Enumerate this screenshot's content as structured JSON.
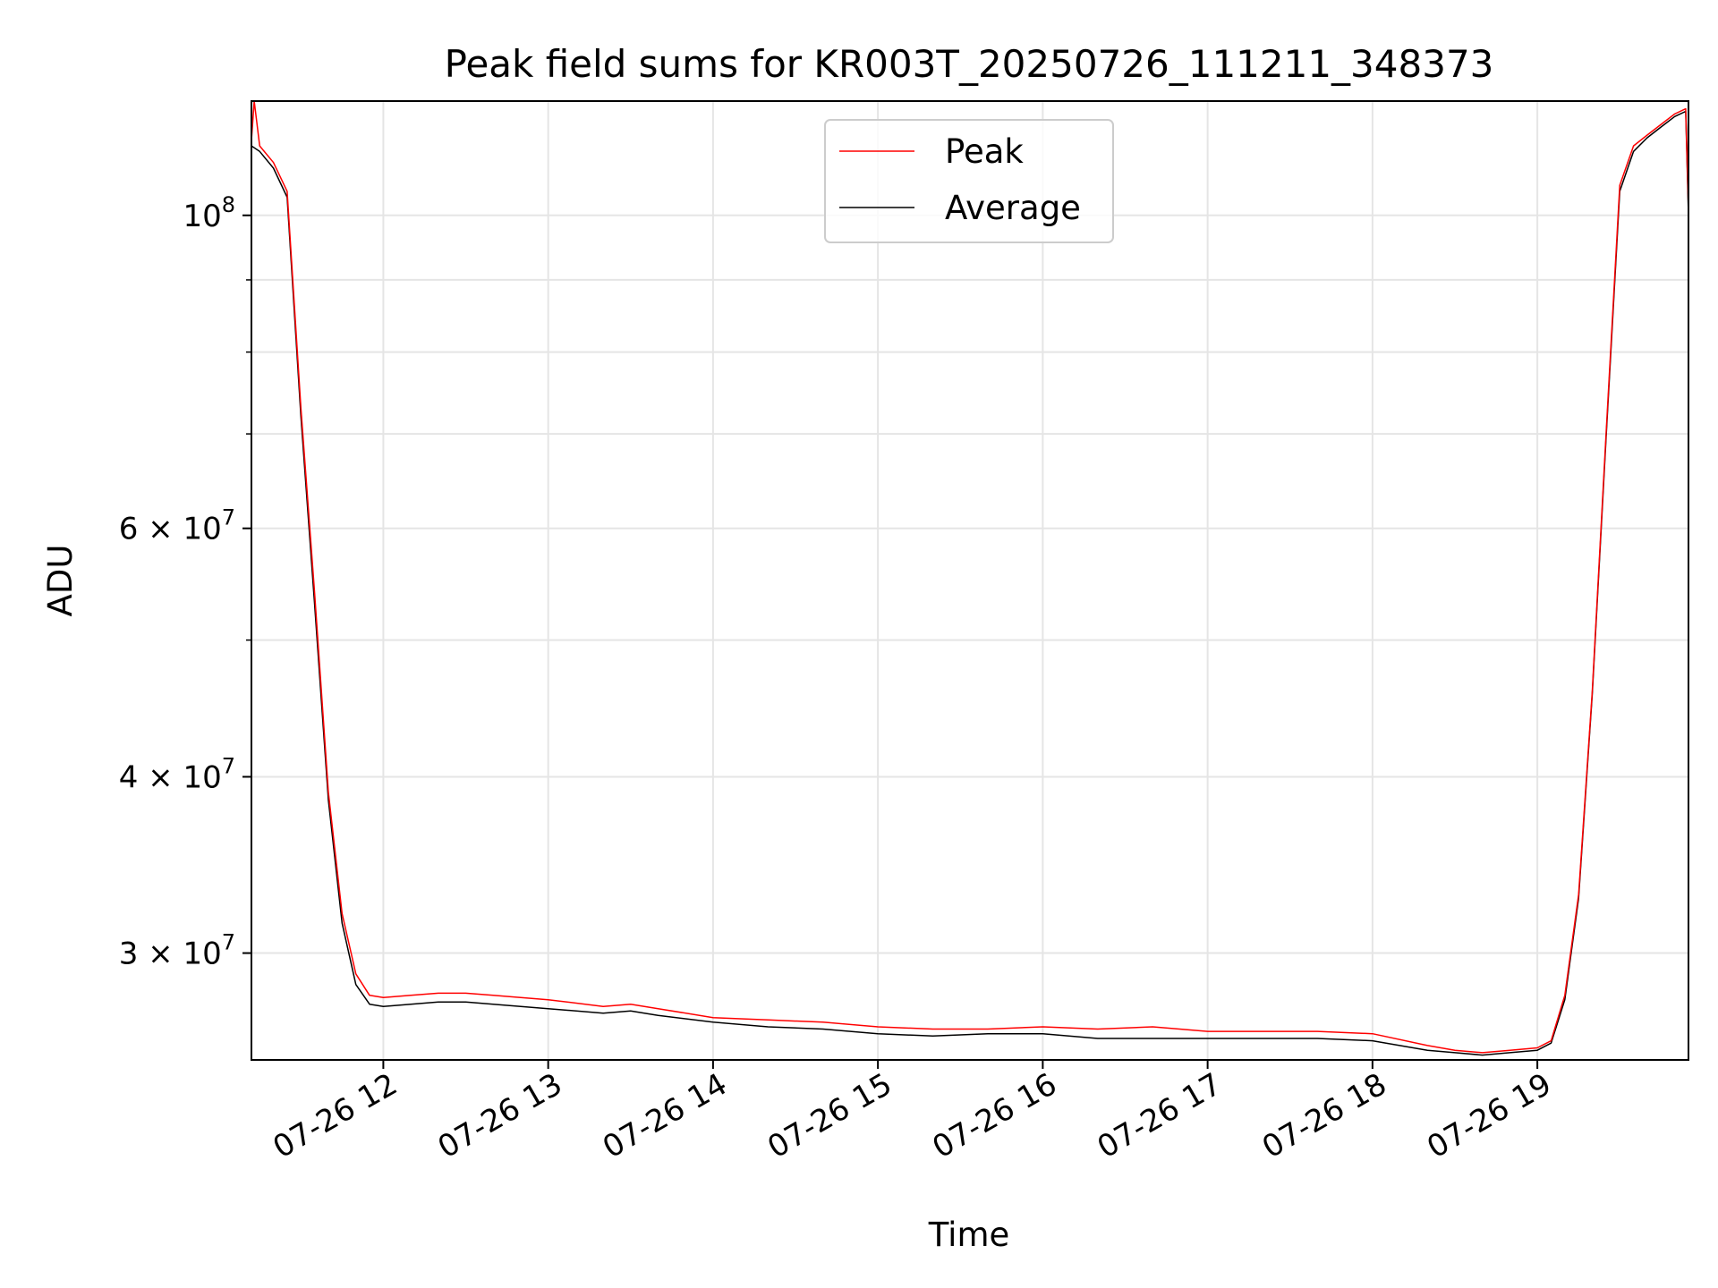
{
  "chart_data": {
    "type": "line",
    "title": "Peak field sums for KR003T_20250726_111211_348373",
    "xlabel": "Time",
    "ylabel": "ADU",
    "y_scale": "log",
    "ylim": [
      25200000,
      120500000
    ],
    "xlim": [
      "2025-07-26 11:12",
      "2025-07-26 19:55"
    ],
    "grid": true,
    "legend_position": "top-center",
    "x_ticks": [
      {
        "t": "2025-07-26 12:00",
        "label": "07-26 12"
      },
      {
        "t": "2025-07-26 13:00",
        "label": "07-26 13"
      },
      {
        "t": "2025-07-26 14:00",
        "label": "07-26 14"
      },
      {
        "t": "2025-07-26 15:00",
        "label": "07-26 15"
      },
      {
        "t": "2025-07-26 16:00",
        "label": "07-26 16"
      },
      {
        "t": "2025-07-26 17:00",
        "label": "07-26 17"
      },
      {
        "t": "2025-07-26 18:00",
        "label": "07-26 18"
      },
      {
        "t": "2025-07-26 19:00",
        "label": "07-26 19"
      }
    ],
    "y_ticks": [
      {
        "v": 30000000,
        "label": "3×10⁷",
        "base": "3 × 10",
        "exp": "7"
      },
      {
        "v": 40000000,
        "label": "4×10⁷",
        "base": "4 × 10",
        "exp": "7"
      },
      {
        "v": 60000000,
        "label": "6×10⁷",
        "base": "6 × 10",
        "exp": "7"
      },
      {
        "v": 100000000,
        "label": "10⁸",
        "base": "10",
        "exp": "8"
      }
    ],
    "y_minor_ticks": [
      50000000,
      70000000,
      80000000,
      90000000
    ],
    "series": [
      {
        "name": "Peak",
        "color": "#ff0000",
        "x": [
          "2025-07-26 11:12",
          "2025-07-26 11:13",
          "2025-07-26 11:15",
          "2025-07-26 11:20",
          "2025-07-26 11:25",
          "2025-07-26 11:30",
          "2025-07-26 11:35",
          "2025-07-26 11:40",
          "2025-07-26 11:45",
          "2025-07-26 11:50",
          "2025-07-26 11:55",
          "2025-07-26 12:00",
          "2025-07-26 12:10",
          "2025-07-26 12:20",
          "2025-07-26 12:30",
          "2025-07-26 12:40",
          "2025-07-26 13:00",
          "2025-07-26 13:20",
          "2025-07-26 13:30",
          "2025-07-26 13:40",
          "2025-07-26 14:00",
          "2025-07-26 14:20",
          "2025-07-26 14:40",
          "2025-07-26 15:00",
          "2025-07-26 15:20",
          "2025-07-26 15:40",
          "2025-07-26 16:00",
          "2025-07-26 16:20",
          "2025-07-26 16:40",
          "2025-07-26 17:00",
          "2025-07-26 17:20",
          "2025-07-26 17:40",
          "2025-07-26 18:00",
          "2025-07-26 18:20",
          "2025-07-26 18:30",
          "2025-07-26 18:40",
          "2025-07-26 18:50",
          "2025-07-26 19:00",
          "2025-07-26 19:05",
          "2025-07-26 19:10",
          "2025-07-26 19:15",
          "2025-07-26 19:20",
          "2025-07-26 19:25",
          "2025-07-26 19:30",
          "2025-07-26 19:35",
          "2025-07-26 19:40",
          "2025-07-26 19:45",
          "2025-07-26 19:50",
          "2025-07-26 19:54",
          "2025-07-26 19:55"
        ],
        "y": [
          113000000,
          120500000,
          112000000,
          109000000,
          104000000,
          73000000,
          54000000,
          39000000,
          32000000,
          29000000,
          28000000,
          27900000,
          28000000,
          28100000,
          28100000,
          28000000,
          27800000,
          27500000,
          27600000,
          27400000,
          27000000,
          26900000,
          26800000,
          26600000,
          26500000,
          26500000,
          26600000,
          26500000,
          26600000,
          26400000,
          26400000,
          26400000,
          26300000,
          25800000,
          25600000,
          25500000,
          25600000,
          25700000,
          26000000,
          28000000,
          33000000,
          46000000,
          70000000,
          105000000,
          112000000,
          114000000,
          116000000,
          118000000,
          119000000,
          101000000
        ]
      },
      {
        "name": "Average",
        "color": "#000000",
        "x": [
          "2025-07-26 11:12",
          "2025-07-26 11:15",
          "2025-07-26 11:20",
          "2025-07-26 11:25",
          "2025-07-26 11:30",
          "2025-07-26 11:35",
          "2025-07-26 11:40",
          "2025-07-26 11:45",
          "2025-07-26 11:50",
          "2025-07-26 11:55",
          "2025-07-26 12:00",
          "2025-07-26 12:10",
          "2025-07-26 12:20",
          "2025-07-26 12:30",
          "2025-07-26 12:40",
          "2025-07-26 13:00",
          "2025-07-26 13:20",
          "2025-07-26 13:30",
          "2025-07-26 13:40",
          "2025-07-26 14:00",
          "2025-07-26 14:20",
          "2025-07-26 14:40",
          "2025-07-26 15:00",
          "2025-07-26 15:20",
          "2025-07-26 15:40",
          "2025-07-26 16:00",
          "2025-07-26 16:20",
          "2025-07-26 16:40",
          "2025-07-26 17:00",
          "2025-07-26 17:20",
          "2025-07-26 17:40",
          "2025-07-26 18:00",
          "2025-07-26 18:20",
          "2025-07-26 18:30",
          "2025-07-26 18:40",
          "2025-07-26 18:50",
          "2025-07-26 19:00",
          "2025-07-26 19:05",
          "2025-07-26 19:10",
          "2025-07-26 19:15",
          "2025-07-26 19:20",
          "2025-07-26 19:25",
          "2025-07-26 19:30",
          "2025-07-26 19:35",
          "2025-07-26 19:40",
          "2025-07-26 19:45",
          "2025-07-26 19:50",
          "2025-07-26 19:54",
          "2025-07-26 19:55"
        ],
        "y": [
          112000000,
          111000000,
          108000000,
          103000000,
          72000000,
          53000000,
          38500000,
          31500000,
          28500000,
          27600000,
          27500000,
          27600000,
          27700000,
          27700000,
          27600000,
          27400000,
          27200000,
          27300000,
          27100000,
          26800000,
          26600000,
          26500000,
          26300000,
          26200000,
          26300000,
          26300000,
          26100000,
          26100000,
          26100000,
          26100000,
          26100000,
          26000000,
          25600000,
          25500000,
          25400000,
          25500000,
          25600000,
          25900000,
          27800000,
          32800000,
          45800000,
          69500000,
          104000000,
          111000000,
          113500000,
          115500000,
          117500000,
          118500000,
          100000000
        ]
      }
    ],
    "legend": [
      {
        "label": "Peak",
        "color": "#ff0000"
      },
      {
        "label": "Average",
        "color": "#000000"
      }
    ]
  }
}
